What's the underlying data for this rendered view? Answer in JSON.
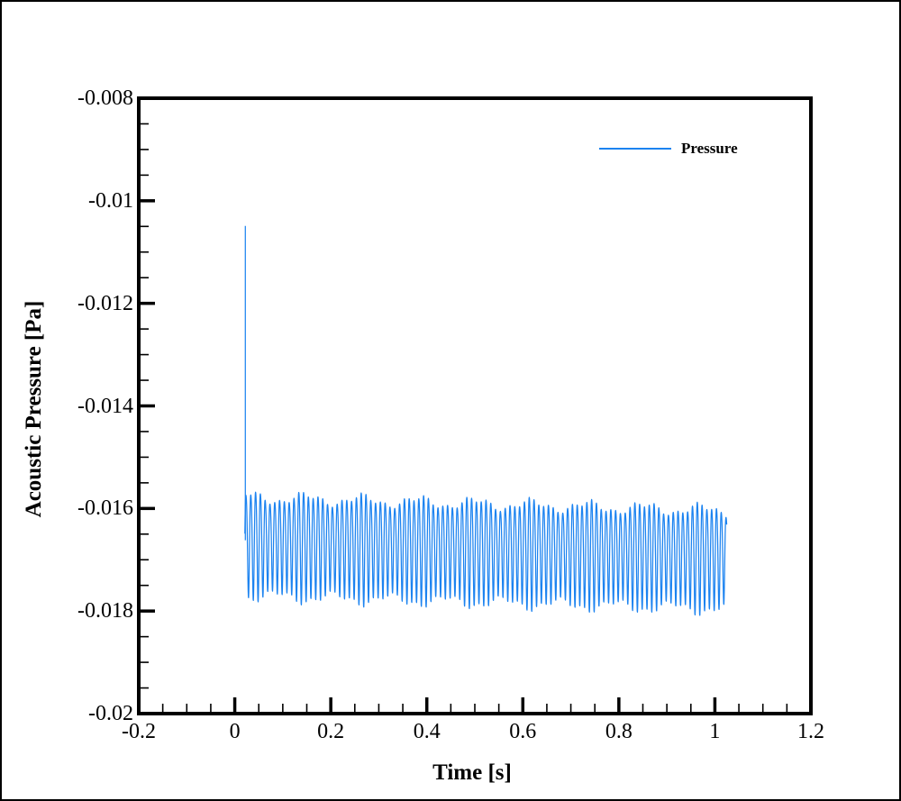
{
  "figure": {
    "background_color": "#ffffff",
    "frame_color": "#000000",
    "accent_color": "#1C83F0"
  },
  "chart_data": {
    "type": "line",
    "title": "",
    "xlabel": "Time [s]",
    "ylabel": "Acoustic Pressure [Pa]",
    "xlim": [
      -0.2,
      1.2
    ],
    "ylim": [
      -0.02,
      -0.008
    ],
    "grid": false,
    "x_major_ticks": [
      -0.2,
      0,
      0.2,
      0.4,
      0.6,
      0.8,
      1,
      1.2
    ],
    "x_tick_labels": [
      "-0.2",
      "0",
      "0.2",
      "0.4",
      "0.6",
      "0.8",
      "1",
      "1.2"
    ],
    "x_minor_step": 0.05,
    "y_major_ticks": [
      -0.008,
      -0.01,
      -0.012,
      -0.014,
      -0.016,
      -0.018,
      -0.02
    ],
    "y_tick_labels": [
      "-0.008",
      "-0.01",
      "-0.012",
      "-0.014",
      "-0.016",
      "-0.018",
      "-0.02"
    ],
    "y_minor_step": 0.0005,
    "legend": {
      "position": "upper-right-inside",
      "entries": [
        {
          "label": "Pressure",
          "color": "#1C83F0"
        }
      ]
    },
    "series": [
      {
        "name": "Pressure",
        "color": "#1C83F0",
        "line_width": 1.25,
        "t_start": 0.021,
        "t_end": 1.025,
        "initial_spike": {
          "t": 0.022,
          "peak": -0.01049
        },
        "carrier_frequency_hz": 100,
        "mean_start": -0.01662,
        "mean_end": -0.01688,
        "amplitude": 0.00096,
        "amplitude_modulation": [
          {
            "depth": 0.1,
            "hz": 8.5,
            "phase": 0.0
          },
          {
            "depth": 0.06,
            "hz": 23.0,
            "phase": 0.7
          }
        ],
        "second_harmonic": {
          "ratio": 0.14,
          "phase": 1.3
        },
        "envelope": {
          "top_start": -0.0156,
          "top_end": -0.0159,
          "bottom_start": -0.0177,
          "bottom_end": -0.0179
        }
      }
    ]
  }
}
